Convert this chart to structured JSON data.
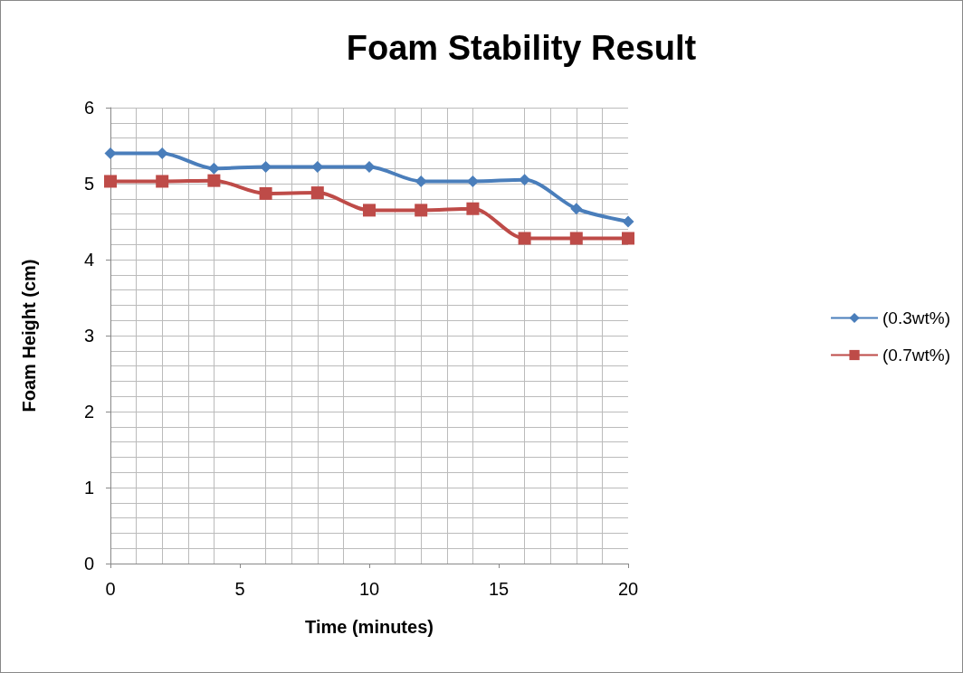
{
  "chart_data": {
    "type": "line",
    "title": "Foam Stability Result",
    "xlabel": "Time (minutes)",
    "ylabel": "Foam Height (cm)",
    "x": [
      0,
      2,
      4,
      6,
      8,
      10,
      12,
      14,
      16,
      18,
      20
    ],
    "series": [
      {
        "name": "(0.3wt%)",
        "color": "#4a7ebb",
        "marker": "diamond",
        "values": [
          5.4,
          5.4,
          5.2,
          5.22,
          5.22,
          5.22,
          5.03,
          5.03,
          5.05,
          4.67,
          4.5
        ]
      },
      {
        "name": "(0.7wt%)",
        "color": "#be4b48",
        "marker": "square",
        "values": [
          5.03,
          5.03,
          5.04,
          4.87,
          4.88,
          4.65,
          4.65,
          4.67,
          4.28,
          4.28,
          4.28
        ]
      }
    ],
    "xlim": [
      0,
      20
    ],
    "xticks": [
      0,
      5,
      10,
      15,
      20
    ],
    "ylim": [
      0,
      6
    ],
    "yticks": [
      0,
      1,
      2,
      3,
      4,
      5,
      6
    ],
    "grid": true,
    "legend": "right",
    "line_style": "solid"
  }
}
